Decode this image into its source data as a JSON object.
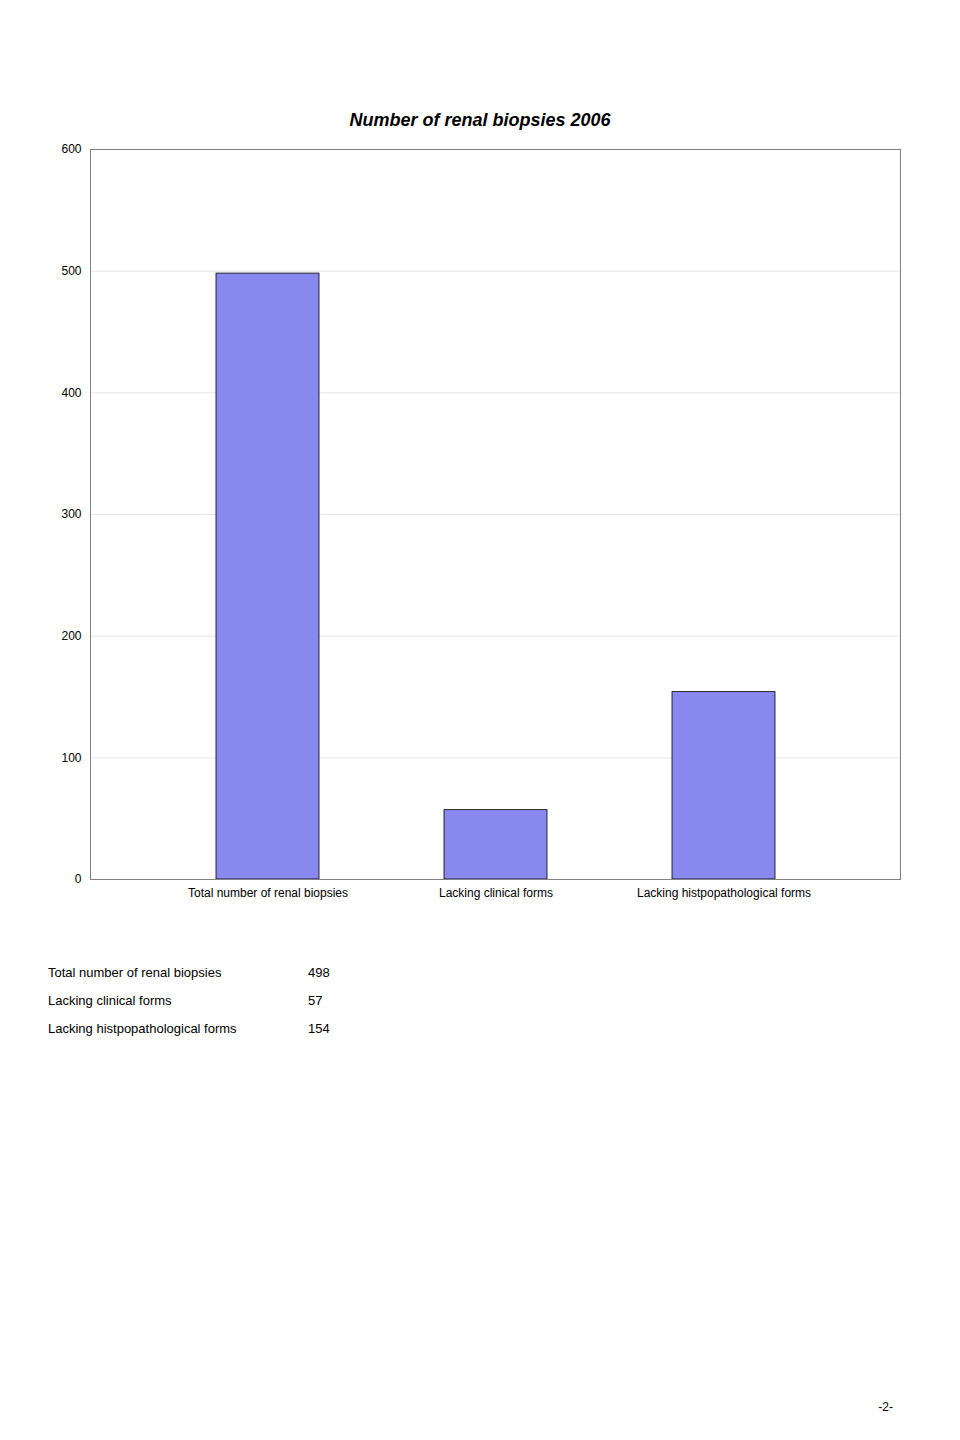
{
  "chart_data": {
    "type": "bar",
    "title": "Number of renal biopsies 2006",
    "categories": [
      "Total number of renal biopsies",
      "Lacking clinical forms",
      "Lacking histpopathological forms"
    ],
    "values": [
      498,
      57,
      154
    ],
    "color": "#8888ee",
    "ylim": [
      0,
      600
    ],
    "yticks": [
      0,
      100,
      200,
      300,
      400,
      500,
      600
    ],
    "grid": true,
    "table": {
      "labels": [
        "Total number of renal biopsies",
        "Lacking clinical forms",
        "Lacking histpopathological forms"
      ],
      "values": [
        498,
        57,
        154
      ]
    },
    "annotations": [
      "-2-"
    ]
  }
}
